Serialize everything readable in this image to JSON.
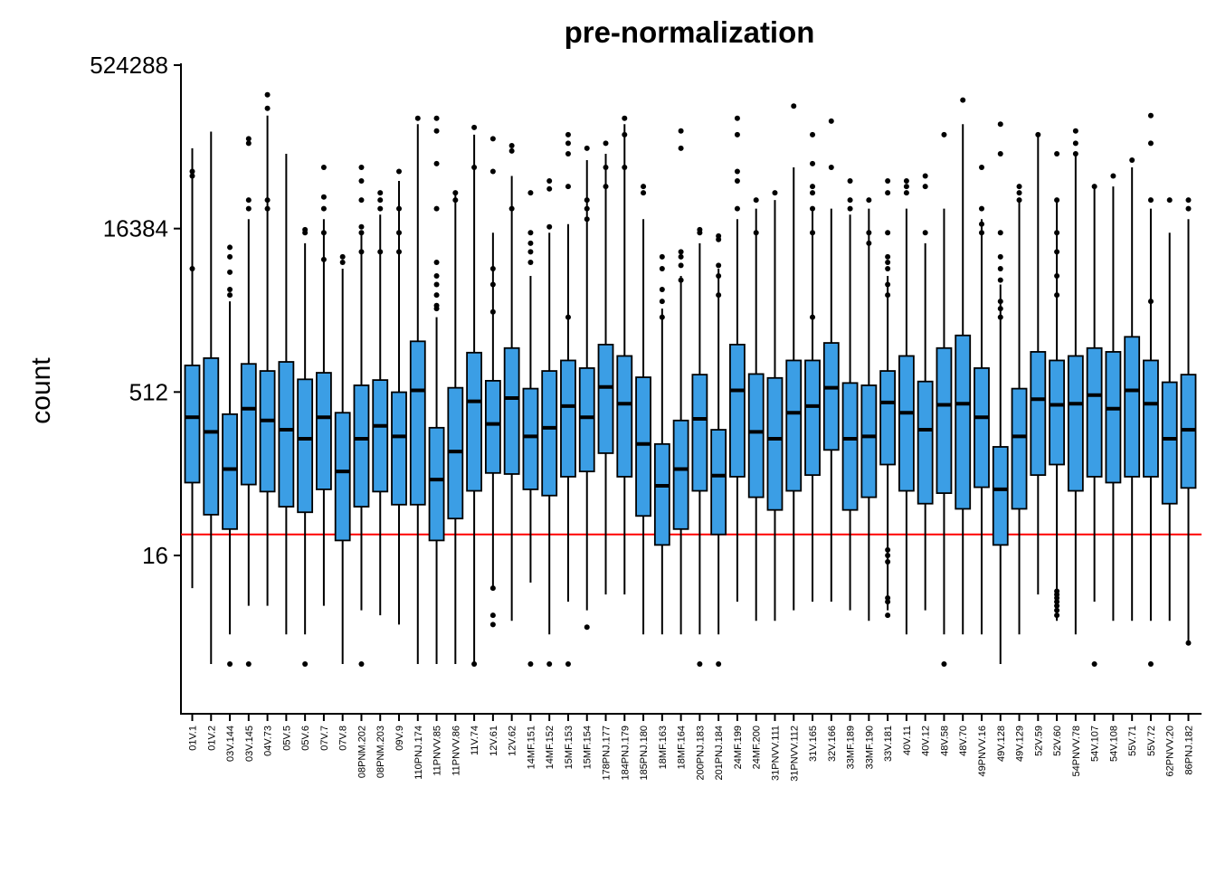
{
  "chart_data": {
    "type": "boxplot",
    "title": "pre-normalization",
    "xlabel": "",
    "ylabel": "count",
    "yscale": "log2",
    "ylim": [
      1,
      1048576
    ],
    "yticks": [
      16,
      512,
      16384,
      524288
    ],
    "ytick_labels": [
      "16",
      "512",
      "16384",
      "524288"
    ],
    "threshold_line": {
      "value": 25,
      "color": "#ff0000"
    },
    "box_fill": "#3b9ee5",
    "grid": false,
    "legend": "none",
    "categories": [
      "01V.1",
      "01V.2",
      "03V.144",
      "03V.145",
      "04V.73",
      "05V.5",
      "05V.6",
      "07V.7",
      "07V.8",
      "08PNM.202",
      "08PNM.203",
      "09V.9",
      "110PNJ.174",
      "11PNVV.85",
      "11PNVV.86",
      "11V.74",
      "12V.61",
      "12V.62",
      "14MF.151",
      "14MF.152",
      "15MF.153",
      "15MF.154",
      "178PNJ.177",
      "184PNJ.179",
      "185PNJ.180",
      "18MF.163",
      "18MF.164",
      "200PNJ.183",
      "201PNJ.184",
      "24MF.199",
      "24MF.200",
      "31PNVV.111",
      "31PNVV.112",
      "31V.165",
      "32V.166",
      "33MF.189",
      "33MF.190",
      "33V.181",
      "40V.11",
      "40V.12",
      "48V.58",
      "48V.70",
      "49PNVV.16",
      "49V.128",
      "49V.129",
      "52V.59",
      "52V.60",
      "54PNVV.78",
      "54V.107",
      "54V.108",
      "55V.71",
      "55V.72",
      "62PNVV.20",
      "86PNJ.182"
    ],
    "boxes": [
      {
        "median": 300,
        "q1": 75,
        "q3": 900,
        "whisker_low": 8,
        "whisker_high": 90000,
        "outliers": [
          7000,
          50000,
          55000
        ]
      },
      {
        "median": 220,
        "q1": 38,
        "q3": 1050,
        "whisker_low": 1.6,
        "whisker_high": 128000,
        "outliers": []
      },
      {
        "median": 100,
        "q1": 28,
        "q3": 320,
        "whisker_low": 3,
        "whisker_high": 3500,
        "outliers": [
          1.6,
          4000,
          4500,
          6500,
          9000,
          11000
        ]
      },
      {
        "median": 360,
        "q1": 72,
        "q3": 930,
        "whisker_low": 5.5,
        "whisker_high": 20000,
        "outliers": [
          1.6,
          25000,
          30000,
          100000,
          110000
        ]
      },
      {
        "median": 280,
        "q1": 62,
        "q3": 800,
        "whisker_low": 5.5,
        "whisker_high": 180000,
        "outliers": [
          25000,
          30000,
          210000,
          280000
        ]
      },
      {
        "median": 230,
        "q1": 45,
        "q3": 970,
        "whisker_low": 3,
        "whisker_high": 80000,
        "outliers": []
      },
      {
        "median": 190,
        "q1": 40,
        "q3": 670,
        "whisker_low": 3,
        "whisker_high": 12000,
        "outliers": [
          1.6,
          15000,
          16000
        ]
      },
      {
        "median": 300,
        "q1": 65,
        "q3": 770,
        "whisker_low": 5.5,
        "whisker_high": 20000,
        "outliers": [
          8500,
          15000,
          25000,
          32000,
          60000
        ]
      },
      {
        "median": 95,
        "q1": 22,
        "q3": 330,
        "whisker_low": 1.6,
        "whisker_high": 7000,
        "outliers": [
          8000,
          9000
        ]
      },
      {
        "median": 190,
        "q1": 45,
        "q3": 590,
        "whisker_low": 5,
        "whisker_high": 15000,
        "outliers": [
          1.6,
          10000,
          15000,
          17000,
          30000,
          45000,
          60000
        ]
      },
      {
        "median": 250,
        "q1": 62,
        "q3": 660,
        "whisker_low": 4.5,
        "whisker_high": 22000,
        "outliers": [
          10000,
          25000,
          30000,
          35000
        ]
      },
      {
        "median": 200,
        "q1": 47,
        "q3": 510,
        "whisker_low": 3.7,
        "whisker_high": 45000,
        "outliers": [
          10000,
          15000,
          25000,
          55000
        ]
      },
      {
        "median": 530,
        "q1": 47,
        "q3": 1500,
        "whisker_low": 1.6,
        "whisker_high": 150000,
        "outliers": [
          170000
        ]
      },
      {
        "median": 80,
        "q1": 22,
        "q3": 240,
        "whisker_low": 1.6,
        "whisker_high": 2500,
        "outliers": [
          3000,
          3200,
          4000,
          5000,
          6000,
          8000,
          25000,
          65000,
          130000,
          170000
        ]
      },
      {
        "median": 145,
        "q1": 35,
        "q3": 560,
        "whisker_low": 1.6,
        "whisker_high": 35000,
        "outliers": [
          30000,
          35000
        ]
      },
      {
        "median": 420,
        "q1": 63,
        "q3": 1180,
        "whisker_low": 1.6,
        "whisker_high": 120000,
        "outliers": [
          1.6,
          60000,
          140000
        ]
      },
      {
        "median": 260,
        "q1": 92,
        "q3": 650,
        "whisker_low": 8,
        "whisker_high": 15000,
        "outliers": [
          3.7,
          4.5,
          8,
          2800,
          5000,
          7000,
          55000,
          110000
        ]
      },
      {
        "median": 450,
        "q1": 90,
        "q3": 1300,
        "whisker_low": 4,
        "whisker_high": 50000,
        "outliers": [
          25000,
          85000,
          95000
        ]
      },
      {
        "median": 200,
        "q1": 65,
        "q3": 550,
        "whisker_low": 9,
        "whisker_high": 6000,
        "outliers": [
          1.6,
          8000,
          10000,
          12000,
          15000,
          35000
        ]
      },
      {
        "median": 240,
        "q1": 57,
        "q3": 800,
        "whisker_low": 3,
        "whisker_high": 15000,
        "outliers": [
          1.6,
          17000,
          38000,
          45000
        ]
      },
      {
        "median": 380,
        "q1": 85,
        "q3": 1000,
        "whisker_low": 6,
        "whisker_high": 18000,
        "outliers": [
          1.6,
          2500,
          40000,
          80000,
          100000,
          120000
        ]
      },
      {
        "median": 300,
        "q1": 95,
        "q3": 850,
        "whisker_low": 5,
        "whisker_high": 70000,
        "outliers": [
          3.5,
          20000,
          25000,
          30000,
          90000
        ]
      },
      {
        "median": 570,
        "q1": 140,
        "q3": 1400,
        "whisker_low": 7,
        "whisker_high": 80000,
        "outliers": [
          40000,
          60000,
          100000
        ]
      },
      {
        "median": 400,
        "q1": 85,
        "q3": 1100,
        "whisker_low": 7,
        "whisker_high": 150000,
        "outliers": [
          60000,
          120000,
          170000
        ]
      },
      {
        "median": 170,
        "q1": 37,
        "q3": 700,
        "whisker_low": 3,
        "whisker_high": 20000,
        "outliers": [
          35000,
          40000
        ]
      },
      {
        "median": 70,
        "q1": 20,
        "q3": 170,
        "whisker_low": 3,
        "whisker_high": 3000,
        "outliers": [
          2500,
          3500,
          4500,
          7000,
          9000
        ]
      },
      {
        "median": 100,
        "q1": 28,
        "q3": 280,
        "whisker_low": 3,
        "whisker_high": 6000,
        "outliers": [
          5500,
          7500,
          9000,
          10000,
          90000,
          130000
        ]
      },
      {
        "median": 290,
        "q1": 63,
        "q3": 740,
        "whisker_low": 3,
        "whisker_high": 12000,
        "outliers": [
          1.6,
          15000,
          16000
        ]
      },
      {
        "median": 87,
        "q1": 25,
        "q3": 230,
        "whisker_low": 3,
        "whisker_high": 7000,
        "outliers": [
          1.6,
          4000,
          6000,
          7500,
          13000,
          14000
        ]
      },
      {
        "median": 530,
        "q1": 85,
        "q3": 1400,
        "whisker_low": 6,
        "whisker_high": 20000,
        "outliers": [
          25000,
          45000,
          55000,
          120000,
          170000
        ]
      },
      {
        "median": 220,
        "q1": 55,
        "q3": 750,
        "whisker_low": 4,
        "whisker_high": 25000,
        "outliers": [
          15000,
          30000
        ]
      },
      {
        "median": 190,
        "q1": 42,
        "q3": 690,
        "whisker_low": 4,
        "whisker_high": 30000,
        "outliers": [
          35000
        ]
      },
      {
        "median": 330,
        "q1": 63,
        "q3": 1000,
        "whisker_low": 5,
        "whisker_high": 60000,
        "outliers": [
          220000
        ]
      },
      {
        "median": 380,
        "q1": 88,
        "q3": 1000,
        "whisker_low": 6,
        "whisker_high": 25000,
        "outliers": [
          2500,
          15000,
          25000,
          35000,
          40000,
          65000,
          120000
        ]
      },
      {
        "median": 560,
        "q1": 150,
        "q3": 1450,
        "whisker_low": 6,
        "whisker_high": 25000,
        "outliers": [
          60000,
          160000
        ]
      },
      {
        "median": 190,
        "q1": 42,
        "q3": 620,
        "whisker_low": 5,
        "whisker_high": 22000,
        "outliers": [
          25000,
          30000,
          45000
        ]
      },
      {
        "median": 200,
        "q1": 55,
        "q3": 590,
        "whisker_low": 4,
        "whisker_high": 25000,
        "outliers": [
          12000,
          15000,
          30000
        ]
      },
      {
        "median": 410,
        "q1": 110,
        "q3": 800,
        "whisker_low": 5,
        "whisker_high": 6000,
        "outliers": [
          4.5,
          6,
          6.5,
          14,
          16,
          18,
          4000,
          5000,
          7000,
          8000,
          9000,
          15000,
          35000,
          45000
        ]
      },
      {
        "median": 330,
        "q1": 63,
        "q3": 1100,
        "whisker_low": 3,
        "whisker_high": 25000,
        "outliers": [
          35000,
          40000,
          45000
        ]
      },
      {
        "median": 230,
        "q1": 48,
        "q3": 640,
        "whisker_low": 5,
        "whisker_high": 12000,
        "outliers": [
          15000,
          40000,
          50000
        ]
      },
      {
        "median": 390,
        "q1": 60,
        "q3": 1300,
        "whisker_low": 3,
        "whisker_high": 25000,
        "outliers": [
          1.6,
          120000
        ]
      },
      {
        "median": 400,
        "q1": 43,
        "q3": 1700,
        "whisker_low": 3,
        "whisker_high": 150000,
        "outliers": [
          250000
        ]
      },
      {
        "median": 300,
        "q1": 68,
        "q3": 850,
        "whisker_low": 3,
        "whisker_high": 20000,
        "outliers": [
          15000,
          18000,
          25000,
          60000
        ]
      },
      {
        "median": 65,
        "q1": 20,
        "q3": 160,
        "whisker_low": 1.6,
        "whisker_high": 5000,
        "outliers": [
          2500,
          3000,
          3500,
          5500,
          7000,
          9000,
          15000,
          80000,
          150000
        ]
      },
      {
        "median": 200,
        "q1": 43,
        "q3": 550,
        "whisker_low": 3,
        "whisker_high": 30000,
        "outliers": [
          30000,
          35000,
          40000
        ]
      },
      {
        "median": 440,
        "q1": 88,
        "q3": 1200,
        "whisker_low": 7,
        "whisker_high": 120000,
        "outliers": [
          120000
        ]
      },
      {
        "median": 390,
        "q1": 110,
        "q3": 1000,
        "whisker_low": 4,
        "whisker_high": 30000,
        "outliers": [
          4.5,
          5,
          5.5,
          6,
          6.5,
          7,
          7.5,
          4000,
          6000,
          10000,
          15000,
          30000,
          80000
        ]
      },
      {
        "median": 400,
        "q1": 63,
        "q3": 1100,
        "whisker_low": 3,
        "whisker_high": 80000,
        "outliers": [
          80000,
          100000,
          130000
        ]
      },
      {
        "median": 480,
        "q1": 85,
        "q3": 1300,
        "whisker_low": 6,
        "whisker_high": 40000,
        "outliers": [
          1.6,
          40000
        ]
      },
      {
        "median": 360,
        "q1": 75,
        "q3": 1200,
        "whisker_low": 4,
        "whisker_high": 40000,
        "outliers": [
          50000
        ]
      },
      {
        "median": 530,
        "q1": 85,
        "q3": 1650,
        "whisker_low": 4,
        "whisker_high": 60000,
        "outliers": [
          70000
        ]
      },
      {
        "median": 400,
        "q1": 85,
        "q3": 1000,
        "whisker_low": 4,
        "whisker_high": 25000,
        "outliers": [
          1.6,
          3500,
          30000,
          100000,
          180000
        ]
      },
      {
        "median": 190,
        "q1": 48,
        "q3": 630,
        "whisker_low": 4,
        "whisker_high": 15000,
        "outliers": [
          30000
        ]
      },
      {
        "median": 230,
        "q1": 67,
        "q3": 740,
        "whisker_low": 2.5,
        "whisker_high": 20000,
        "outliers": [
          2.5,
          25000,
          30000
        ]
      }
    ]
  }
}
